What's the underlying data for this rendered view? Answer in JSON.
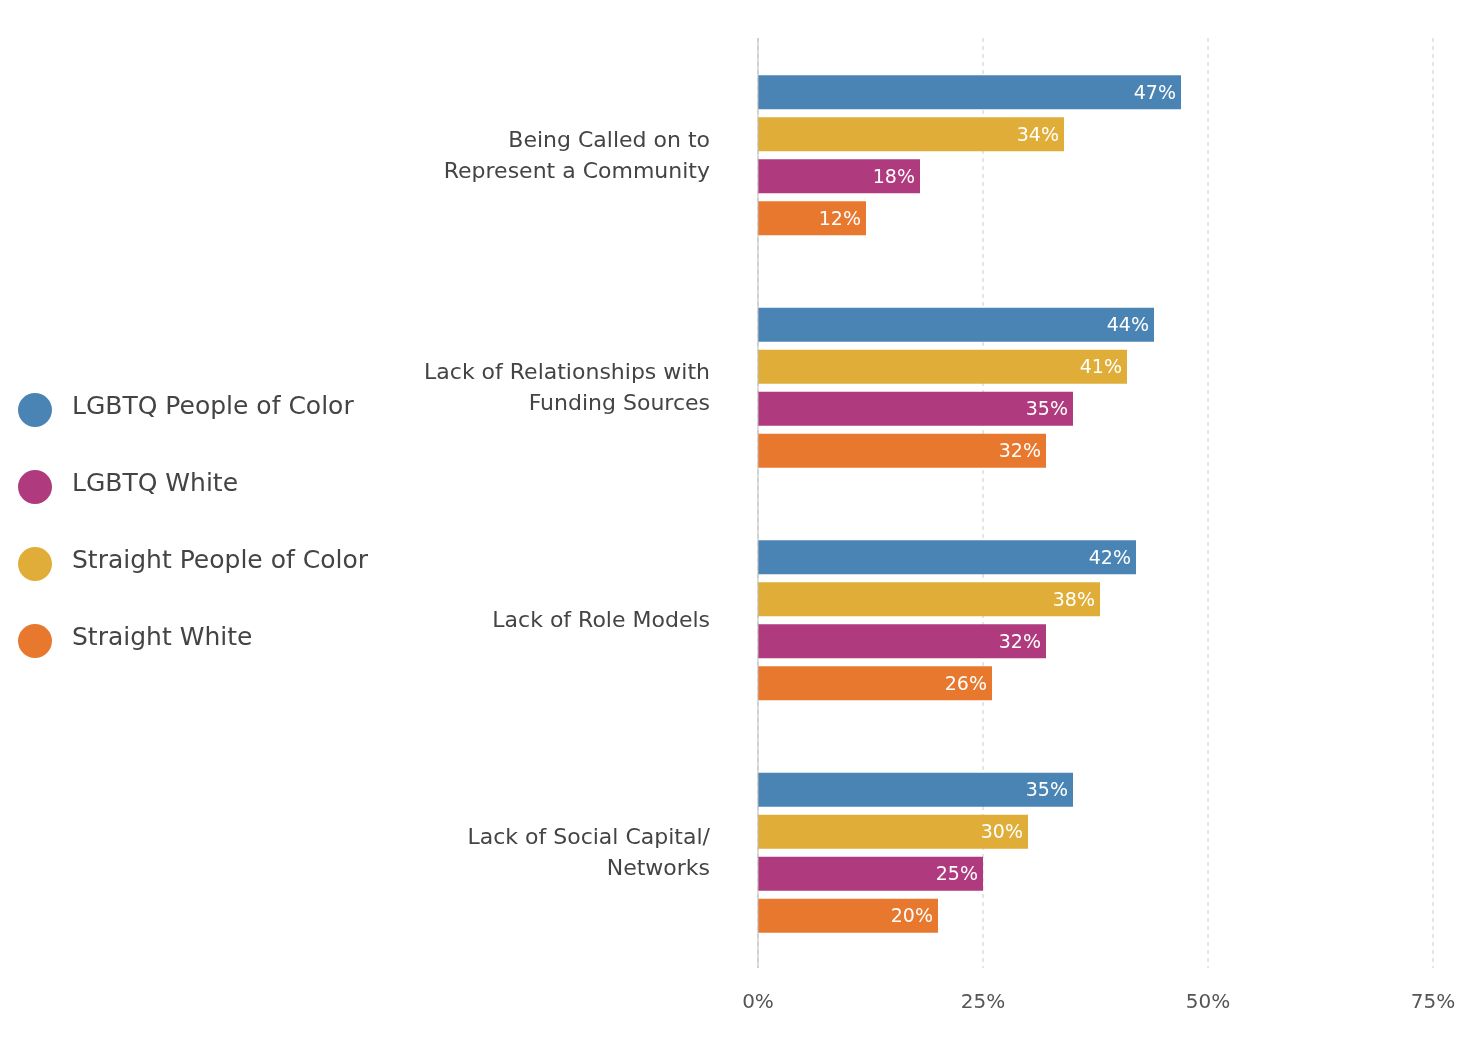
{
  "chart_data": {
    "type": "bar",
    "orientation": "horizontal",
    "categories": [
      "Being Called on to Represent a Community",
      "Lack of Relationships with Funding Sources",
      "Lack of Role Models",
      "Lack of Social Capital/ Networks"
    ],
    "series": [
      {
        "name": "LGBTQ People of Color",
        "color": "#4a84b4",
        "values": [
          47,
          44,
          42,
          35
        ],
        "value_labels": [
          "47%",
          "44%",
          "42%",
          "35%"
        ]
      },
      {
        "name": "Straight People of Color",
        "color": "#e0ae38",
        "values": [
          34,
          41,
          38,
          30
        ],
        "value_labels": [
          "34%",
          "41%",
          "38%",
          "30%"
        ]
      },
      {
        "name": "LGBTQ White",
        "color": "#b03a7e",
        "values": [
          18,
          35,
          32,
          25
        ],
        "value_labels": [
          "18%",
          "35%",
          "32%",
          "25%"
        ]
      },
      {
        "name": "Straight White",
        "color": "#e8782e",
        "values": [
          12,
          32,
          26,
          20
        ],
        "value_labels": [
          "12%",
          "32%",
          "26%",
          "20%"
        ]
      }
    ],
    "xlim": [
      0,
      75
    ],
    "xticks": [
      {
        "value": 0,
        "label": "0%"
      },
      {
        "value": 25,
        "label": "25%"
      },
      {
        "value": 50,
        "label": "50%"
      },
      {
        "value": 75,
        "label": "75%"
      }
    ],
    "grid": "x",
    "legend": "left"
  }
}
